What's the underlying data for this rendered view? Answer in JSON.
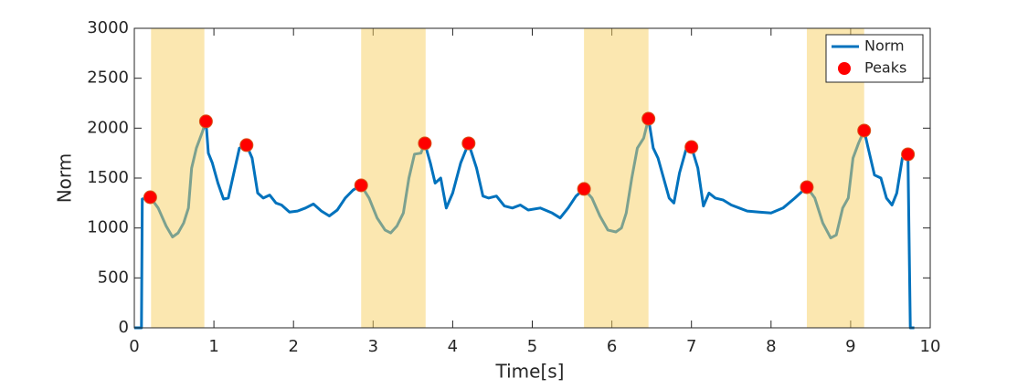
{
  "chart_data": {
    "type": "line",
    "xlabel": "Time[s]",
    "ylabel": "Norm",
    "xlim": [
      0,
      10
    ],
    "xticks": [
      0,
      1,
      2,
      3,
      4,
      5,
      6,
      7,
      8,
      9,
      10
    ],
    "ylim": [
      0,
      3000
    ],
    "yticks": [
      0,
      500,
      1000,
      1500,
      2000,
      2500,
      3000
    ],
    "grid": false,
    "legend_location": "northeast",
    "shade_color": "#f7cf61",
    "shaded_regions": [
      [
        0.21,
        0.88
      ],
      [
        2.85,
        3.66
      ],
      [
        5.65,
        6.46
      ],
      [
        8.45,
        9.17
      ]
    ],
    "series": [
      {
        "name": "Norm",
        "color": "#0072bd",
        "x": [
          0,
          0.09,
          0.1,
          0.2,
          0.3,
          0.4,
          0.48,
          0.55,
          0.62,
          0.68,
          0.72,
          0.78,
          0.85,
          0.9,
          0.93,
          0.98,
          1.05,
          1.12,
          1.18,
          1.25,
          1.32,
          1.41,
          1.48,
          1.55,
          1.62,
          1.7,
          1.78,
          1.85,
          1.95,
          2.05,
          2.15,
          2.25,
          2.35,
          2.45,
          2.55,
          2.65,
          2.75,
          2.85,
          2.95,
          3.05,
          3.15,
          3.22,
          3.3,
          3.38,
          3.45,
          3.52,
          3.6,
          3.65,
          3.72,
          3.78,
          3.85,
          3.92,
          4.0,
          4.1,
          4.2,
          4.3,
          4.38,
          4.45,
          4.55,
          4.65,
          4.75,
          4.85,
          4.95,
          5.1,
          5.25,
          5.35,
          5.45,
          5.55,
          5.65,
          5.75,
          5.85,
          5.95,
          6.05,
          6.12,
          6.18,
          6.25,
          6.32,
          6.4,
          6.46,
          6.52,
          6.58,
          6.65,
          6.72,
          6.78,
          6.85,
          6.93,
          7.0,
          7.08,
          7.15,
          7.22,
          7.3,
          7.4,
          7.5,
          7.6,
          7.7,
          7.85,
          8.0,
          8.15,
          8.3,
          8.45,
          8.55,
          8.65,
          8.75,
          8.82,
          8.9,
          8.97,
          9.03,
          9.1,
          9.17,
          9.22,
          9.3,
          9.38,
          9.45,
          9.52,
          9.58,
          9.65,
          9.72,
          9.75,
          9.8
        ],
        "values": [
          0,
          0,
          1290,
          1308,
          1200,
          1020,
          910,
          950,
          1050,
          1200,
          1600,
          1800,
          1950,
          2068,
          1750,
          1650,
          1450,
          1290,
          1300,
          1550,
          1800,
          1830,
          1700,
          1350,
          1300,
          1330,
          1250,
          1230,
          1160,
          1170,
          1200,
          1240,
          1170,
          1120,
          1180,
          1300,
          1380,
          1427,
          1300,
          1100,
          980,
          950,
          1020,
          1150,
          1500,
          1740,
          1750,
          1848,
          1650,
          1450,
          1500,
          1200,
          1350,
          1650,
          1848,
          1600,
          1320,
          1300,
          1320,
          1220,
          1200,
          1230,
          1180,
          1200,
          1150,
          1100,
          1200,
          1320,
          1391,
          1300,
          1120,
          980,
          960,
          1000,
          1150,
          1500,
          1800,
          1900,
          2095,
          1800,
          1700,
          1500,
          1300,
          1250,
          1550,
          1780,
          1811,
          1600,
          1220,
          1350,
          1300,
          1280,
          1230,
          1200,
          1170,
          1160,
          1150,
          1200,
          1300,
          1409,
          1300,
          1050,
          900,
          930,
          1200,
          1300,
          1700,
          1850,
          1976,
          1800,
          1530,
          1500,
          1300,
          1230,
          1350,
          1700,
          1738,
          0,
          0
        ]
      },
      {
        "name": "Peaks",
        "color": "#ff0000",
        "marker": "circle",
        "x": [
          0.2,
          0.9,
          1.41,
          2.85,
          3.65,
          4.2,
          5.65,
          6.46,
          7.0,
          8.45,
          9.17,
          9.72
        ],
        "values": [
          1308,
          2068,
          1830,
          1427,
          1848,
          1848,
          1391,
          2095,
          1811,
          1409,
          1976,
          1738
        ]
      }
    ]
  }
}
